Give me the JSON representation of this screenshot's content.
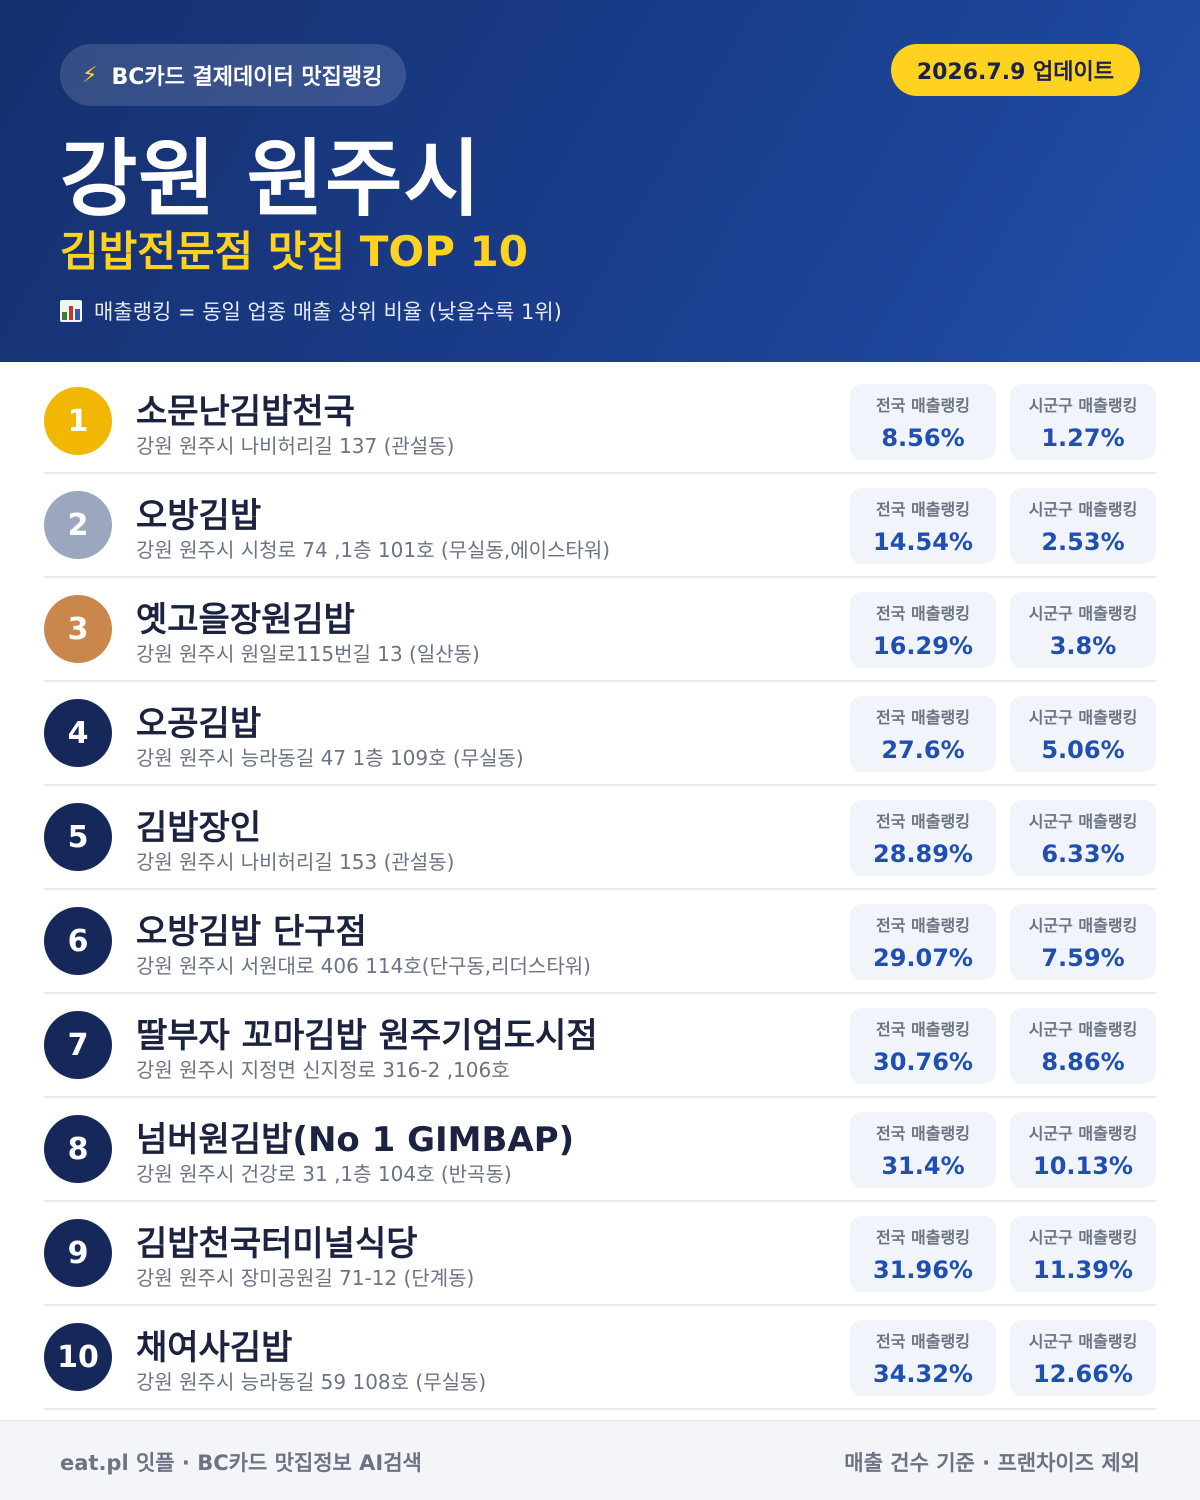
{
  "header": {
    "source_label": "BC카드 결제데이터 맛집랭킹",
    "source_icon": "lightning-bolt-icon",
    "update_label": "2026.7.9 업데이트",
    "city": "강원 원주시",
    "category_title": "김밥전문점 맛집 TOP 10",
    "note": "매출랭킹 = 동일 업종 매출 상위 비율 (낮을수록 1위)",
    "note_icon": "bar-chart-icon"
  },
  "labels": {
    "national": "전국 매출랭킹",
    "district": "시군구 매출랭킹"
  },
  "colors": {
    "gold": "#f2b705",
    "silver": "#9aa7bf",
    "bronze": "#c9874b",
    "navy": "#16285a",
    "accent_yellow": "#ffd21f",
    "value_blue": "#1f4fb0"
  },
  "restaurants": [
    {
      "rank": "1",
      "name": "소문난김밥천국",
      "address": "강원 원주시 나비허리길 137 (관설동)",
      "national": "8.56%",
      "district": "1.27%"
    },
    {
      "rank": "2",
      "name": "오방김밥",
      "address": "강원 원주시 시청로 74 ,1층 101호 (무실동,에이스타워)",
      "national": "14.54%",
      "district": "2.53%"
    },
    {
      "rank": "3",
      "name": "옛고을장원김밥",
      "address": "강원 원주시 원일로115번길 13 (일산동)",
      "national": "16.29%",
      "district": "3.8%"
    },
    {
      "rank": "4",
      "name": "오공김밥",
      "address": "강원 원주시 능라동길 47 1층 109호 (무실동)",
      "national": "27.6%",
      "district": "5.06%"
    },
    {
      "rank": "5",
      "name": "김밥장인",
      "address": "강원 원주시 나비허리길 153 (관설동)",
      "national": "28.89%",
      "district": "6.33%"
    },
    {
      "rank": "6",
      "name": "오방김밥 단구점",
      "address": "강원 원주시 서원대로 406 114호(단구동,리더스타워)",
      "national": "29.07%",
      "district": "7.59%"
    },
    {
      "rank": "7",
      "name": "딸부자 꼬마김밥 원주기업도시점",
      "address": "강원 원주시 지정면 신지정로 316-2 ,106호",
      "national": "30.76%",
      "district": "8.86%"
    },
    {
      "rank": "8",
      "name": "넘버원김밥(No 1 GIMBAP)",
      "address": "강원 원주시 건강로 31 ,1층 104호 (반곡동)",
      "national": "31.4%",
      "district": "10.13%"
    },
    {
      "rank": "9",
      "name": "김밥천국터미널식당",
      "address": "강원 원주시 장미공원길 71-12 (단계동)",
      "national": "31.96%",
      "district": "11.39%"
    },
    {
      "rank": "10",
      "name": "채여사김밥",
      "address": "강원 원주시 능라동길 59 108호 (무실동)",
      "national": "34.32%",
      "district": "12.66%"
    }
  ],
  "footer": {
    "left": "eat.pl 잇플 · BC카드 맛집정보 AI검색",
    "right": "매출 건수 기준 · 프랜차이즈 제외"
  }
}
